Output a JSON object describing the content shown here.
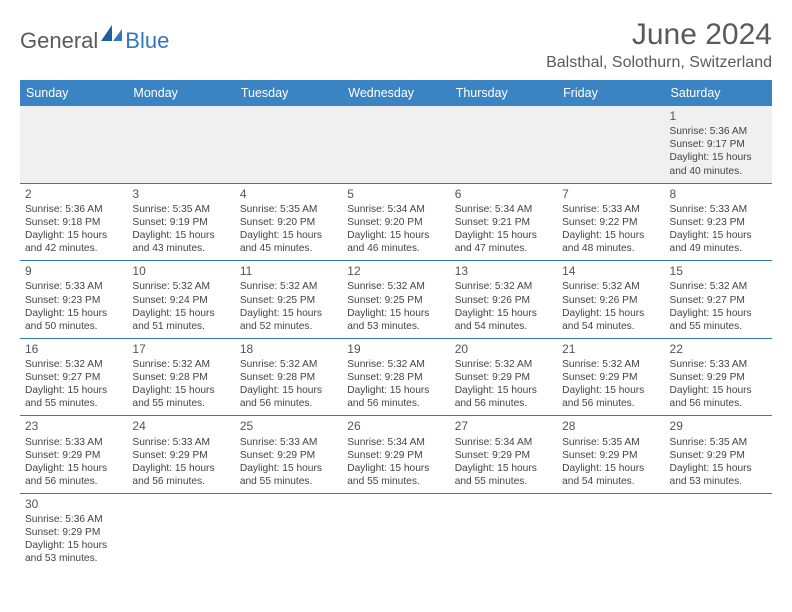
{
  "brand": {
    "name_gray": "General",
    "name_blue": "Blue"
  },
  "header": {
    "title": "June 2024",
    "location": "Balsthal, Solothurn, Switzerland"
  },
  "colors": {
    "header_bar": "#3b84c4",
    "row_divider": "#2f7ab8",
    "empty_bg": "#f0f0f0",
    "text": "#444444",
    "title_text": "#5a5a5a"
  },
  "days_of_week": [
    "Sunday",
    "Monday",
    "Tuesday",
    "Wednesday",
    "Thursday",
    "Friday",
    "Saturday"
  ],
  "weeks": [
    [
      null,
      null,
      null,
      null,
      null,
      null,
      {
        "n": "1",
        "sr": "5:36 AM",
        "ss": "9:17 PM",
        "dl": "15 hours and 40 minutes."
      }
    ],
    [
      {
        "n": "2",
        "sr": "5:36 AM",
        "ss": "9:18 PM",
        "dl": "15 hours and 42 minutes."
      },
      {
        "n": "3",
        "sr": "5:35 AM",
        "ss": "9:19 PM",
        "dl": "15 hours and 43 minutes."
      },
      {
        "n": "4",
        "sr": "5:35 AM",
        "ss": "9:20 PM",
        "dl": "15 hours and 45 minutes."
      },
      {
        "n": "5",
        "sr": "5:34 AM",
        "ss": "9:20 PM",
        "dl": "15 hours and 46 minutes."
      },
      {
        "n": "6",
        "sr": "5:34 AM",
        "ss": "9:21 PM",
        "dl": "15 hours and 47 minutes."
      },
      {
        "n": "7",
        "sr": "5:33 AM",
        "ss": "9:22 PM",
        "dl": "15 hours and 48 minutes."
      },
      {
        "n": "8",
        "sr": "5:33 AM",
        "ss": "9:23 PM",
        "dl": "15 hours and 49 minutes."
      }
    ],
    [
      {
        "n": "9",
        "sr": "5:33 AM",
        "ss": "9:23 PM",
        "dl": "15 hours and 50 minutes."
      },
      {
        "n": "10",
        "sr": "5:32 AM",
        "ss": "9:24 PM",
        "dl": "15 hours and 51 minutes."
      },
      {
        "n": "11",
        "sr": "5:32 AM",
        "ss": "9:25 PM",
        "dl": "15 hours and 52 minutes."
      },
      {
        "n": "12",
        "sr": "5:32 AM",
        "ss": "9:25 PM",
        "dl": "15 hours and 53 minutes."
      },
      {
        "n": "13",
        "sr": "5:32 AM",
        "ss": "9:26 PM",
        "dl": "15 hours and 54 minutes."
      },
      {
        "n": "14",
        "sr": "5:32 AM",
        "ss": "9:26 PM",
        "dl": "15 hours and 54 minutes."
      },
      {
        "n": "15",
        "sr": "5:32 AM",
        "ss": "9:27 PM",
        "dl": "15 hours and 55 minutes."
      }
    ],
    [
      {
        "n": "16",
        "sr": "5:32 AM",
        "ss": "9:27 PM",
        "dl": "15 hours and 55 minutes."
      },
      {
        "n": "17",
        "sr": "5:32 AM",
        "ss": "9:28 PM",
        "dl": "15 hours and 55 minutes."
      },
      {
        "n": "18",
        "sr": "5:32 AM",
        "ss": "9:28 PM",
        "dl": "15 hours and 56 minutes."
      },
      {
        "n": "19",
        "sr": "5:32 AM",
        "ss": "9:28 PM",
        "dl": "15 hours and 56 minutes."
      },
      {
        "n": "20",
        "sr": "5:32 AM",
        "ss": "9:29 PM",
        "dl": "15 hours and 56 minutes."
      },
      {
        "n": "21",
        "sr": "5:32 AM",
        "ss": "9:29 PM",
        "dl": "15 hours and 56 minutes."
      },
      {
        "n": "22",
        "sr": "5:33 AM",
        "ss": "9:29 PM",
        "dl": "15 hours and 56 minutes."
      }
    ],
    [
      {
        "n": "23",
        "sr": "5:33 AM",
        "ss": "9:29 PM",
        "dl": "15 hours and 56 minutes."
      },
      {
        "n": "24",
        "sr": "5:33 AM",
        "ss": "9:29 PM",
        "dl": "15 hours and 56 minutes."
      },
      {
        "n": "25",
        "sr": "5:33 AM",
        "ss": "9:29 PM",
        "dl": "15 hours and 55 minutes."
      },
      {
        "n": "26",
        "sr": "5:34 AM",
        "ss": "9:29 PM",
        "dl": "15 hours and 55 minutes."
      },
      {
        "n": "27",
        "sr": "5:34 AM",
        "ss": "9:29 PM",
        "dl": "15 hours and 55 minutes."
      },
      {
        "n": "28",
        "sr": "5:35 AM",
        "ss": "9:29 PM",
        "dl": "15 hours and 54 minutes."
      },
      {
        "n": "29",
        "sr": "5:35 AM",
        "ss": "9:29 PM",
        "dl": "15 hours and 53 minutes."
      }
    ],
    [
      {
        "n": "30",
        "sr": "5:36 AM",
        "ss": "9:29 PM",
        "dl": "15 hours and 53 minutes."
      },
      null,
      null,
      null,
      null,
      null,
      null
    ]
  ],
  "labels": {
    "sunrise": "Sunrise:",
    "sunset": "Sunset:",
    "daylight": "Daylight:"
  }
}
